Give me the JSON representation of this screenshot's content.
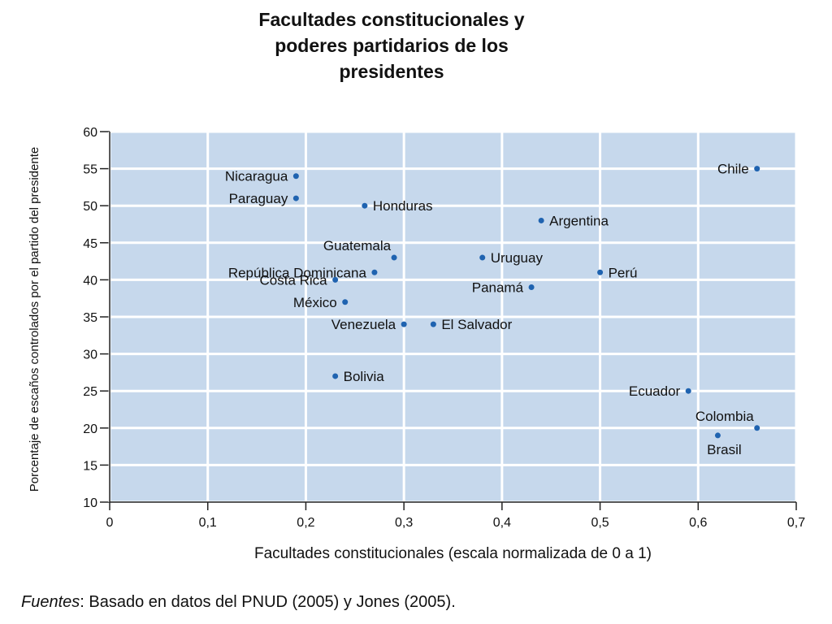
{
  "chart_data": {
    "type": "scatter",
    "title": [
      "Facultades constitucionales y",
      "poderes partidarios de los",
      "presidentes"
    ],
    "xlabel": "Facultades constitucionales (escala normalizada de 0 a 1)",
    "ylabel": "Porcentaje de escaños controlados por el partido del presidente",
    "xlim": [
      0,
      0.7
    ],
    "ylim": [
      10,
      60
    ],
    "xticks": [
      {
        "value": 0,
        "label": "0"
      },
      {
        "value": 0.1,
        "label": "0,1"
      },
      {
        "value": 0.2,
        "label": "0,2"
      },
      {
        "value": 0.3,
        "label": "0,3"
      },
      {
        "value": 0.4,
        "label": "0,4"
      },
      {
        "value": 0.5,
        "label": "0,5"
      },
      {
        "value": 0.6,
        "label": "0,6"
      },
      {
        "value": 0.7,
        "label": "0,7"
      }
    ],
    "yticks": [
      {
        "value": 10,
        "label": "10"
      },
      {
        "value": 15,
        "label": "15"
      },
      {
        "value": 20,
        "label": "20"
      },
      {
        "value": 25,
        "label": "25"
      },
      {
        "value": 30,
        "label": "30"
      },
      {
        "value": 35,
        "label": "35"
      },
      {
        "value": 40,
        "label": "40"
      },
      {
        "value": 45,
        "label": "45"
      },
      {
        "value": 50,
        "label": "50"
      },
      {
        "value": 55,
        "label": "55"
      },
      {
        "value": 60,
        "label": "60"
      }
    ],
    "grid": true,
    "colors": {
      "plot_bg": "#c6d8ec",
      "grid": "#ffffff",
      "point": "#1f63b0",
      "text": "#111111"
    },
    "points": [
      {
        "name": "Nicaragua",
        "x": 0.19,
        "y": 54,
        "label_pos": "left"
      },
      {
        "name": "Paraguay",
        "x": 0.19,
        "y": 51,
        "label_pos": "left"
      },
      {
        "name": "Honduras",
        "x": 0.26,
        "y": 50,
        "label_pos": "right"
      },
      {
        "name": "Guatemala",
        "x": 0.29,
        "y": 43,
        "label_pos": "top-left"
      },
      {
        "name": "República Dominicana",
        "x": 0.27,
        "y": 41,
        "label_pos": "left"
      },
      {
        "name": "Costa Rica",
        "x": 0.23,
        "y": 40,
        "label_pos": "left"
      },
      {
        "name": "México",
        "x": 0.24,
        "y": 37,
        "label_pos": "left"
      },
      {
        "name": "Venezuela",
        "x": 0.3,
        "y": 34,
        "label_pos": "left"
      },
      {
        "name": "El Salvador",
        "x": 0.33,
        "y": 34,
        "label_pos": "right"
      },
      {
        "name": "Bolivia",
        "x": 0.23,
        "y": 27,
        "label_pos": "right"
      },
      {
        "name": "Uruguay",
        "x": 0.38,
        "y": 43,
        "label_pos": "right"
      },
      {
        "name": "Panamá",
        "x": 0.43,
        "y": 39,
        "label_pos": "left"
      },
      {
        "name": "Argentina",
        "x": 0.44,
        "y": 48,
        "label_pos": "right"
      },
      {
        "name": "Perú",
        "x": 0.5,
        "y": 41,
        "label_pos": "right"
      },
      {
        "name": "Chile",
        "x": 0.66,
        "y": 55,
        "label_pos": "left"
      },
      {
        "name": "Ecuador",
        "x": 0.59,
        "y": 25,
        "label_pos": "left"
      },
      {
        "name": "Colombia",
        "x": 0.66,
        "y": 20,
        "label_pos": "top-left"
      },
      {
        "name": "Brasil",
        "x": 0.62,
        "y": 19,
        "label_pos": "below"
      }
    ]
  },
  "source": {
    "prefix": "Fuentes",
    "text": ": Basado en datos del PNUD (2005) y Jones (2005)."
  }
}
